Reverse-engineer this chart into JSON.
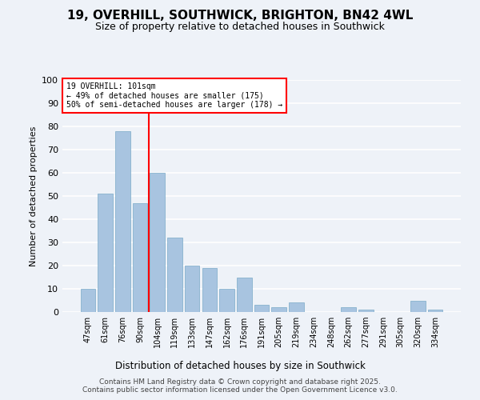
{
  "title": "19, OVERHILL, SOUTHWICK, BRIGHTON, BN42 4WL",
  "subtitle": "Size of property relative to detached houses in Southwick",
  "xlabel": "Distribution of detached houses by size in Southwick",
  "ylabel": "Number of detached properties",
  "categories": [
    "47sqm",
    "61sqm",
    "76sqm",
    "90sqm",
    "104sqm",
    "119sqm",
    "133sqm",
    "147sqm",
    "162sqm",
    "176sqm",
    "191sqm",
    "205sqm",
    "219sqm",
    "234sqm",
    "248sqm",
    "262sqm",
    "277sqm",
    "291sqm",
    "305sqm",
    "320sqm",
    "334sqm"
  ],
  "values": [
    10,
    51,
    78,
    47,
    60,
    32,
    20,
    19,
    10,
    15,
    3,
    2,
    4,
    0,
    0,
    2,
    1,
    0,
    0,
    5,
    1
  ],
  "bar_color": "#a8c4e0",
  "bar_edge_color": "#7aaac8",
  "vline_x": 4.0,
  "vline_color": "red",
  "annotation_title": "19 OVERHILL: 101sqm",
  "annotation_line1": "← 49% of detached houses are smaller (175)",
  "annotation_line2": "50% of semi-detached houses are larger (178) →",
  "annotation_box_color": "white",
  "annotation_box_edge": "red",
  "ylim": [
    0,
    100
  ],
  "yticks": [
    0,
    10,
    20,
    30,
    40,
    50,
    60,
    70,
    80,
    90,
    100
  ],
  "footer1": "Contains HM Land Registry data © Crown copyright and database right 2025.",
  "footer2": "Contains public sector information licensed under the Open Government Licence v3.0.",
  "bg_color": "#eef2f8",
  "grid_color": "white"
}
